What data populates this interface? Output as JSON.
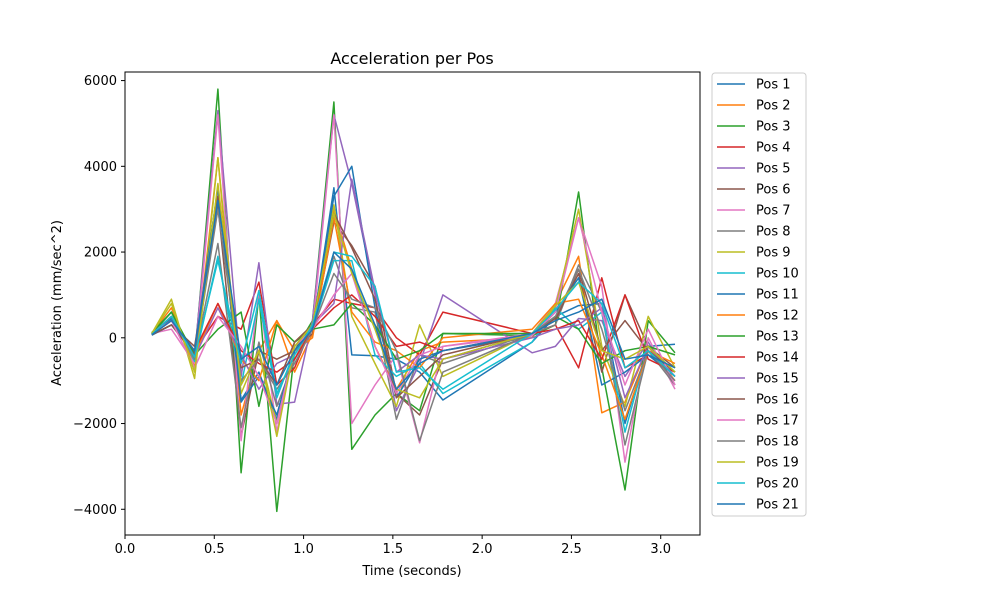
{
  "chart_data": {
    "type": "line",
    "title": "Acceleration per Pos",
    "xlabel": "Time (seconds)",
    "ylabel": "Acceleration (mm/sec^2)",
    "xlim": [
      0.0,
      3.22
    ],
    "ylim": [
      -4600,
      6200
    ],
    "xticks": [
      0.0,
      0.5,
      1.0,
      1.5,
      2.0,
      2.5,
      3.0
    ],
    "xtick_labels": [
      "0.0",
      "0.5",
      "1.0",
      "1.5",
      "2.0",
      "2.5",
      "3.0"
    ],
    "yticks": [
      -4000,
      -2000,
      0,
      2000,
      4000,
      6000
    ],
    "ytick_labels": [
      "−4000",
      "−2000",
      "0",
      "2000",
      "4000",
      "6000"
    ],
    "grid": false,
    "legend_position": "outside-right",
    "colors": [
      "#1f77b4",
      "#ff7f0e",
      "#2ca02c",
      "#d62728",
      "#9467bd",
      "#8c564b",
      "#e377c2",
      "#7f7f7f",
      "#bcbd22",
      "#17becf"
    ],
    "series": [
      {
        "name": "Pos 1",
        "x": [
          0.15,
          0.26,
          0.39,
          0.52,
          0.65,
          0.75,
          0.85,
          0.95,
          1.05,
          1.17,
          1.27,
          1.4,
          1.52,
          1.65,
          1.78,
          2.28,
          2.41,
          2.54,
          2.67,
          2.8,
          2.93,
          3.08
        ],
        "y": [
          80,
          450,
          -350,
          3500,
          -1450,
          -800,
          -1900,
          -200,
          200,
          3500,
          -400,
          -420,
          -500,
          -800,
          -1450,
          -100,
          500,
          750,
          800,
          -2000,
          -200,
          -150
        ]
      },
      {
        "name": "Pos 2",
        "x": [
          0.15,
          0.26,
          0.39,
          0.52,
          0.65,
          0.75,
          0.85,
          0.95,
          1.05,
          1.17,
          1.27,
          1.4,
          1.52,
          1.65,
          1.78,
          2.28,
          2.41,
          2.54,
          2.67,
          2.8,
          2.93,
          3.08
        ],
        "y": [
          100,
          700,
          -650,
          4200,
          -1800,
          -300,
          400,
          -800,
          100,
          3000,
          1600,
          -200,
          -1200,
          -300,
          -100,
          0,
          800,
          1900,
          -1750,
          -1500,
          -200,
          -1000
        ]
      },
      {
        "name": "Pos 3",
        "x": [
          0.15,
          0.26,
          0.39,
          0.52,
          0.65,
          0.75,
          0.85,
          0.95,
          1.05,
          1.17,
          1.27,
          1.4,
          1.52,
          1.65,
          1.78,
          2.28,
          2.41,
          2.54,
          2.67,
          2.8,
          2.93,
          3.08
        ],
        "y": [
          120,
          600,
          -500,
          5800,
          -3150,
          1000,
          -4050,
          -300,
          400,
          5500,
          -2600,
          -1800,
          -1300,
          -1700,
          100,
          50,
          300,
          3400,
          -700,
          -3550,
          400,
          -350
        ]
      },
      {
        "name": "Pos 4",
        "x": [
          0.15,
          0.26,
          0.39,
          0.52,
          0.65,
          0.75,
          0.85,
          0.95,
          1.05,
          1.17,
          1.27,
          1.4,
          1.52,
          1.65,
          1.78,
          2.28,
          2.41,
          2.54,
          2.67,
          2.8,
          2.93,
          3.08
        ],
        "y": [
          80,
          400,
          -300,
          500,
          200,
          1300,
          -1100,
          -700,
          300,
          900,
          800,
          700,
          0,
          -400,
          600,
          100,
          300,
          -700,
          1400,
          -700,
          -400,
          -900
        ]
      },
      {
        "name": "Pos 5",
        "x": [
          0.15,
          0.26,
          0.39,
          0.52,
          0.65,
          0.75,
          0.85,
          0.95,
          1.05,
          1.17,
          1.27,
          1.4,
          1.52,
          1.65,
          1.78,
          2.28,
          2.41,
          2.54,
          2.67,
          2.8,
          2.93,
          3.08
        ],
        "y": [
          90,
          500,
          -400,
          5300,
          -900,
          1750,
          -1550,
          -1500,
          400,
          5200,
          3600,
          1000,
          -1700,
          -600,
          1000,
          -350,
          -200,
          450,
          400,
          -900,
          -100,
          -1100
        ]
      },
      {
        "name": "Pos 6",
        "x": [
          0.15,
          0.26,
          0.39,
          0.52,
          0.65,
          0.75,
          0.85,
          0.95,
          1.05,
          1.17,
          1.27,
          1.4,
          1.52,
          1.65,
          1.78,
          2.28,
          2.41,
          2.54,
          2.67,
          2.8,
          2.93,
          3.08
        ],
        "y": [
          70,
          300,
          -200,
          3100,
          -2300,
          -300,
          -500,
          -300,
          100,
          2700,
          2150,
          1200,
          -1300,
          -1800,
          -500,
          100,
          450,
          1500,
          -800,
          1000,
          -200,
          -700
        ]
      },
      {
        "name": "Pos 7",
        "x": [
          0.15,
          0.26,
          0.39,
          0.52,
          0.65,
          0.75,
          0.85,
          0.95,
          1.05,
          1.17,
          1.27,
          1.4,
          1.52,
          1.65,
          1.78,
          2.28,
          2.41,
          2.54,
          2.67,
          2.8,
          2.93,
          3.08
        ],
        "y": [
          100,
          200,
          -600,
          5200,
          -2400,
          1100,
          -2200,
          -100,
          200,
          5200,
          -2000,
          -1100,
          -400,
          -2450,
          -200,
          100,
          800,
          2800,
          1200,
          -2900,
          0,
          -1200
        ]
      },
      {
        "name": "Pos 8",
        "x": [
          0.15,
          0.26,
          0.39,
          0.52,
          0.65,
          0.75,
          0.85,
          0.95,
          1.05,
          1.17,
          1.27,
          1.4,
          1.52,
          1.65,
          1.78,
          2.28,
          2.41,
          2.54,
          2.67,
          2.8,
          2.93,
          3.08
        ],
        "y": [
          80,
          400,
          -450,
          2200,
          -2100,
          -100,
          -1600,
          -500,
          300,
          1900,
          700,
          600,
          -1900,
          -400,
          -600,
          100,
          300,
          1700,
          600,
          -2500,
          -300,
          -1100
        ]
      },
      {
        "name": "Pos 9",
        "x": [
          0.15,
          0.26,
          0.39,
          0.52,
          0.65,
          0.75,
          0.85,
          0.95,
          1.05,
          1.17,
          1.27,
          1.4,
          1.52,
          1.65,
          1.78,
          2.28,
          2.41,
          2.54,
          2.67,
          2.8,
          2.93,
          3.08
        ],
        "y": [
          100,
          900,
          -950,
          4200,
          -1300,
          -300,
          -2000,
          -100,
          300,
          3100,
          500,
          -600,
          -1600,
          300,
          -900,
          100,
          700,
          3000,
          -200,
          -1600,
          500,
          -700
        ]
      },
      {
        "name": "Pos 10",
        "x": [
          0.15,
          0.26,
          0.39,
          0.52,
          0.65,
          0.75,
          0.85,
          0.95,
          1.05,
          1.17,
          1.27,
          1.4,
          1.52,
          1.65,
          1.78,
          2.28,
          2.41,
          2.54,
          2.67,
          2.8,
          2.93,
          3.08
        ],
        "y": [
          90,
          600,
          -550,
          1900,
          -1100,
          900,
          -1400,
          -300,
          200,
          1800,
          1800,
          -400,
          -900,
          -600,
          -1300,
          -100,
          700,
          200,
          600,
          -2200,
          -200,
          -800
        ]
      },
      {
        "name": "Pos 11",
        "x": [
          0.15,
          0.26,
          0.39,
          0.52,
          0.65,
          0.75,
          0.85,
          0.95,
          1.05,
          1.17,
          1.27,
          1.4,
          1.52,
          1.65,
          1.78,
          2.28,
          2.41,
          2.54,
          2.67,
          2.8,
          2.93,
          3.08
        ],
        "y": [
          60,
          300,
          -300,
          3500,
          -1500,
          -900,
          -1800,
          -300,
          250,
          3300,
          4000,
          700,
          -1400,
          -500,
          -300,
          50,
          600,
          1400,
          -1100,
          -800,
          -400,
          -900
        ]
      },
      {
        "name": "Pos 12",
        "x": [
          0.15,
          0.26,
          0.39,
          0.52,
          0.65,
          0.75,
          0.85,
          0.95,
          1.05,
          1.17,
          1.27,
          1.4,
          1.52,
          1.65,
          1.78,
          2.28,
          2.41,
          2.54,
          2.67,
          2.8,
          2.93,
          3.08
        ],
        "y": [
          80,
          500,
          -400,
          800,
          -500,
          -1000,
          400,
          -300,
          0,
          2800,
          600,
          -100,
          -300,
          -700,
          0,
          200,
          800,
          900,
          -400,
          -1900,
          -300,
          -600
        ]
      },
      {
        "name": "Pos 13",
        "x": [
          0.15,
          0.26,
          0.39,
          0.52,
          0.65,
          0.75,
          0.85,
          0.95,
          1.05,
          1.17,
          1.27,
          1.4,
          1.52,
          1.65,
          1.78,
          2.28,
          2.41,
          2.54,
          2.67,
          2.8,
          2.93,
          3.08
        ],
        "y": [
          100,
          600,
          -400,
          200,
          600,
          -1600,
          300,
          -100,
          200,
          300,
          800,
          300,
          -500,
          -300,
          100,
          100,
          500,
          200,
          -600,
          -300,
          -200,
          -400
        ]
      },
      {
        "name": "Pos 14",
        "x": [
          0.15,
          0.26,
          0.39,
          0.52,
          0.65,
          0.75,
          0.85,
          0.95,
          1.05,
          1.17,
          1.27,
          1.4,
          1.52,
          1.65,
          1.78,
          2.28,
          2.41,
          2.54,
          2.67,
          2.8,
          2.93,
          3.08
        ],
        "y": [
          80,
          400,
          -300,
          800,
          -300,
          -600,
          -800,
          -500,
          200,
          700,
          1000,
          500,
          -200,
          -100,
          -300,
          100,
          200,
          400,
          -500,
          1000,
          -500,
          -800
        ]
      },
      {
        "name": "Pos 15",
        "x": [
          0.15,
          0.26,
          0.39,
          0.52,
          0.65,
          0.75,
          0.85,
          0.95,
          1.05,
          1.17,
          1.27,
          1.4,
          1.52,
          1.65,
          1.78,
          2.28,
          2.41,
          2.54,
          2.67,
          2.8,
          2.93,
          3.08
        ],
        "y": [
          90,
          500,
          -450,
          700,
          -400,
          -1200,
          -600,
          -400,
          300,
          800,
          3700,
          1100,
          -800,
          -400,
          -500,
          0,
          200,
          300,
          700,
          -1400,
          -200,
          -900
        ]
      },
      {
        "name": "Pos 16",
        "x": [
          0.15,
          0.26,
          0.39,
          0.52,
          0.65,
          0.75,
          0.85,
          0.95,
          1.05,
          1.17,
          1.27,
          1.4,
          1.52,
          1.65,
          1.78,
          2.28,
          2.41,
          2.54,
          2.67,
          2.8,
          2.93,
          3.08
        ],
        "y": [
          70,
          300,
          -400,
          3300,
          -700,
          -500,
          -1100,
          -100,
          300,
          2900,
          2100,
          900,
          -1400,
          -900,
          -400,
          100,
          400,
          1600,
          -300,
          400,
          -300,
          -800
        ]
      },
      {
        "name": "Pos 17",
        "x": [
          0.15,
          0.26,
          0.39,
          0.52,
          0.65,
          0.75,
          0.85,
          0.95,
          1.05,
          1.17,
          1.27,
          1.4,
          1.52,
          1.65,
          1.78,
          2.28,
          2.41,
          2.54,
          2.67,
          2.8,
          2.93,
          3.08
        ],
        "y": [
          100,
          400,
          -700,
          500,
          -200,
          -900,
          -2000,
          -200,
          200,
          1000,
          1500,
          -200,
          -1300,
          -400,
          -200,
          50,
          600,
          2800,
          600,
          -1100,
          200,
          -1100
        ]
      },
      {
        "name": "Pos 18",
        "x": [
          0.15,
          0.26,
          0.39,
          0.52,
          0.65,
          0.75,
          0.85,
          0.95,
          1.05,
          1.17,
          1.27,
          1.4,
          1.52,
          1.65,
          1.78,
          2.28,
          2.41,
          2.54,
          2.67,
          2.8,
          2.93,
          3.08
        ],
        "y": [
          90,
          500,
          -500,
          3000,
          -1000,
          -500,
          -1200,
          -600,
          200,
          1500,
          900,
          700,
          -300,
          -2400,
          -800,
          100,
          500,
          1600,
          200,
          -1700,
          -300,
          -1000
        ]
      },
      {
        "name": "Pos 19",
        "x": [
          0.15,
          0.26,
          0.39,
          0.52,
          0.65,
          0.75,
          0.85,
          0.95,
          1.05,
          1.17,
          1.27,
          1.4,
          1.52,
          1.65,
          1.78,
          2.28,
          2.41,
          2.54,
          2.67,
          2.8,
          2.93,
          3.08
        ],
        "y": [
          100,
          800,
          -800,
          3600,
          -1100,
          -300,
          -2300,
          -200,
          300,
          2900,
          1500,
          200,
          -1200,
          -1400,
          -500,
          100,
          750,
          1300,
          -300,
          -500,
          -200,
          -800
        ]
      },
      {
        "name": "Pos 20",
        "x": [
          0.15,
          0.26,
          0.39,
          0.52,
          0.65,
          0.75,
          0.85,
          0.95,
          1.05,
          1.17,
          1.27,
          1.4,
          1.52,
          1.65,
          1.78,
          2.28,
          2.41,
          2.54,
          2.67,
          2.8,
          2.93,
          3.08
        ],
        "y": [
          80,
          500,
          -450,
          1800,
          -600,
          1100,
          -1300,
          -400,
          300,
          2000,
          1900,
          1200,
          -800,
          -700,
          -1200,
          100,
          650,
          1300,
          800,
          -700,
          -300,
          -900
        ]
      },
      {
        "name": "Pos 21",
        "x": [
          0.15,
          0.26,
          0.39,
          0.52,
          0.65,
          0.75,
          0.85,
          0.95,
          1.05,
          1.17,
          1.27,
          1.4,
          1.52,
          1.65,
          1.78,
          2.28,
          2.41,
          2.54,
          2.67,
          2.8,
          2.93,
          3.08
        ],
        "y": [
          70,
          400,
          -300,
          3200,
          -500,
          -200,
          -1100,
          -300,
          200,
          2000,
          1600,
          300,
          -1200,
          -600,
          -300,
          100,
          400,
          600,
          900,
          -500,
          -400,
          -700
        ]
      }
    ]
  }
}
